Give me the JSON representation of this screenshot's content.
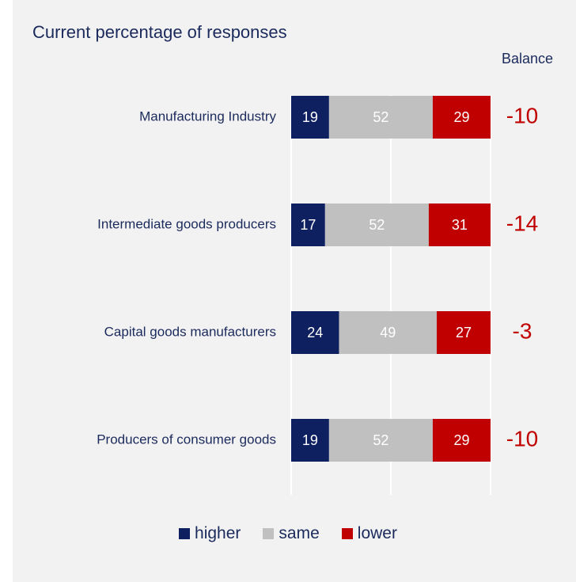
{
  "chart_data": {
    "type": "bar",
    "orientation": "horizontal",
    "stacked": true,
    "title": "Current percentage of responses",
    "balance_header": "Balance",
    "categories": [
      "Manufacturing Industry",
      "Intermediate goods producers",
      "Capital goods manufacturers",
      "Producers of consumer goods"
    ],
    "series": [
      {
        "name": "higher",
        "color": "#0f2060",
        "values": [
          19,
          17,
          24,
          19
        ]
      },
      {
        "name": "same",
        "color": "#c0c0c0",
        "values": [
          52,
          52,
          49,
          52
        ]
      },
      {
        "name": "lower",
        "color": "#c00000",
        "values": [
          29,
          31,
          27,
          29
        ]
      }
    ],
    "balance": [
      "-10",
      "-14",
      "-3",
      "-10"
    ],
    "xlim": [
      0,
      100
    ],
    "grid": true,
    "legend_position": "bottom"
  }
}
